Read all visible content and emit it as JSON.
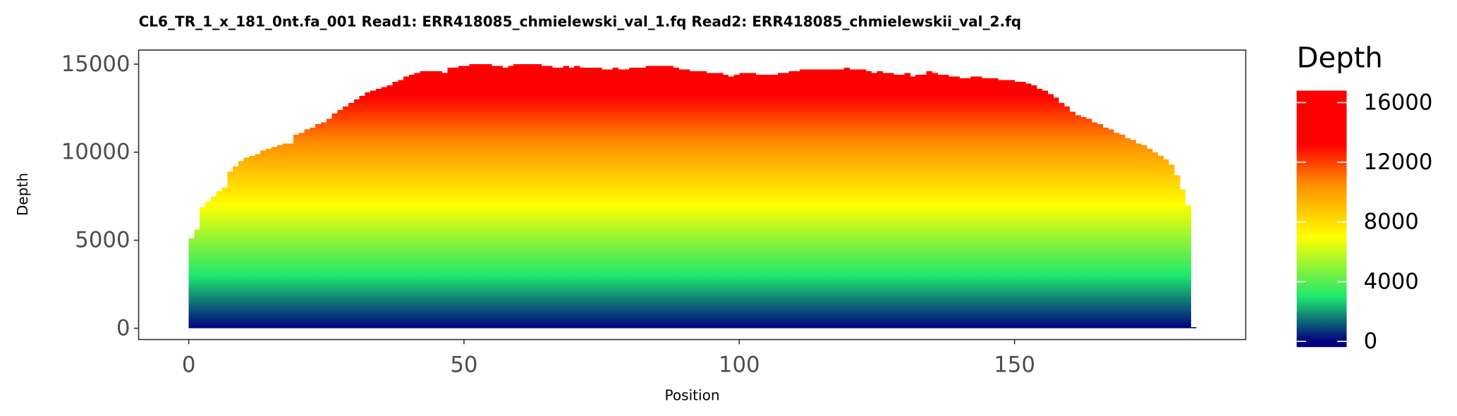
{
  "chart_data": {
    "type": "step_area",
    "title": "CL6_TR_1_x_181_0nt.fa_001   Read1: ERR418085_chmielewski_val_1.fq   Read2: ERR418085_chmielewskii_val_2.fq",
    "xlabel": "Position",
    "ylabel": "Depth",
    "legend_title": "Depth",
    "xlim": [
      -9.1,
      192
    ],
    "xticks": [
      0,
      50,
      100,
      150
    ],
    "ylim": [
      -640,
      15800
    ],
    "yticks": [
      0,
      5000,
      10000,
      15000
    ],
    "colorbar_lim": [
      -380,
      16800
    ],
    "colorbar_ticks": [
      0,
      4000,
      8000,
      12000,
      16000
    ],
    "colorscale": [
      {
        "value": 0,
        "color": "#00007f"
      },
      {
        "value": 3000,
        "color": "#1ee86e"
      },
      {
        "value": 7000,
        "color": "#ffff00"
      },
      {
        "value": 10500,
        "color": "#ff9000"
      },
      {
        "value": 13200,
        "color": "#ff0000"
      }
    ],
    "x": [
      0,
      1,
      2,
      3,
      4,
      5,
      6,
      7,
      8,
      9,
      10,
      11,
      12,
      13,
      14,
      15,
      16,
      17,
      18,
      19,
      20,
      21,
      22,
      23,
      24,
      25,
      26,
      27,
      28,
      29,
      30,
      31,
      32,
      33,
      34,
      35,
      36,
      37,
      38,
      39,
      40,
      41,
      42,
      43,
      44,
      45,
      46,
      47,
      48,
      49,
      50,
      51,
      52,
      53,
      54,
      55,
      56,
      57,
      58,
      59,
      60,
      61,
      62,
      63,
      64,
      65,
      66,
      67,
      68,
      69,
      70,
      71,
      72,
      73,
      74,
      75,
      76,
      77,
      78,
      79,
      80,
      81,
      82,
      83,
      84,
      85,
      86,
      87,
      88,
      89,
      90,
      91,
      92,
      93,
      94,
      95,
      96,
      97,
      98,
      99,
      100,
      101,
      102,
      103,
      104,
      105,
      106,
      107,
      108,
      109,
      110,
      111,
      112,
      113,
      114,
      115,
      116,
      117,
      118,
      119,
      120,
      121,
      122,
      123,
      124,
      125,
      126,
      127,
      128,
      129,
      130,
      131,
      132,
      133,
      134,
      135,
      136,
      137,
      138,
      139,
      140,
      141,
      142,
      143,
      144,
      145,
      146,
      147,
      148,
      149,
      150,
      151,
      152,
      153,
      154,
      155,
      156,
      157,
      158,
      159,
      160,
      161,
      162,
      163,
      164,
      165,
      166,
      167,
      168,
      169,
      170,
      171,
      172,
      173,
      174,
      175,
      176,
      177,
      178,
      179,
      180,
      181,
      182
    ],
    "values": [
      5100,
      5600,
      6900,
      7200,
      7500,
      7800,
      8000,
      8900,
      9200,
      9500,
      9700,
      9800,
      9900,
      10100,
      10200,
      10300,
      10400,
      10500,
      10500,
      11000,
      11100,
      11300,
      11400,
      11600,
      11700,
      11900,
      12200,
      12400,
      12600,
      12800,
      13000,
      13200,
      13400,
      13500,
      13600,
      13700,
      13800,
      14000,
      14100,
      14300,
      14400,
      14500,
      14600,
      14600,
      14600,
      14600,
      14500,
      14800,
      14800,
      14900,
      14900,
      15000,
      15000,
      15000,
      15000,
      14900,
      14900,
      14800,
      14900,
      15000,
      15000,
      15000,
      15000,
      15000,
      14900,
      14900,
      14800,
      14800,
      14900,
      14800,
      14900,
      14800,
      14800,
      14800,
      14800,
      14700,
      14700,
      14800,
      14700,
      14700,
      14800,
      14800,
      14800,
      14900,
      14900,
      14900,
      14900,
      14900,
      14800,
      14700,
      14700,
      14600,
      14600,
      14600,
      14500,
      14500,
      14500,
      14400,
      14300,
      14400,
      14500,
      14500,
      14500,
      14400,
      14400,
      14400,
      14400,
      14500,
      14500,
      14600,
      14600,
      14700,
      14700,
      14700,
      14700,
      14700,
      14700,
      14700,
      14700,
      14800,
      14700,
      14700,
      14700,
      14600,
      14500,
      14600,
      14500,
      14500,
      14400,
      14400,
      14500,
      14300,
      14400,
      14400,
      14600,
      14500,
      14400,
      14400,
      14300,
      14300,
      14200,
      14200,
      14300,
      14300,
      14200,
      14200,
      14200,
      14100,
      14100,
      14100,
      14000,
      14000,
      13900,
      13800,
      13600,
      13500,
      13300,
      13100,
      12800,
      12600,
      12300,
      12100,
      12000,
      11900,
      11700,
      11600,
      11400,
      11300,
      11100,
      11000,
      10800,
      10700,
      10500,
      10400,
      10200,
      10000,
      9800,
      9600,
      9300,
      8700,
      7900,
      7000,
      0
    ]
  }
}
